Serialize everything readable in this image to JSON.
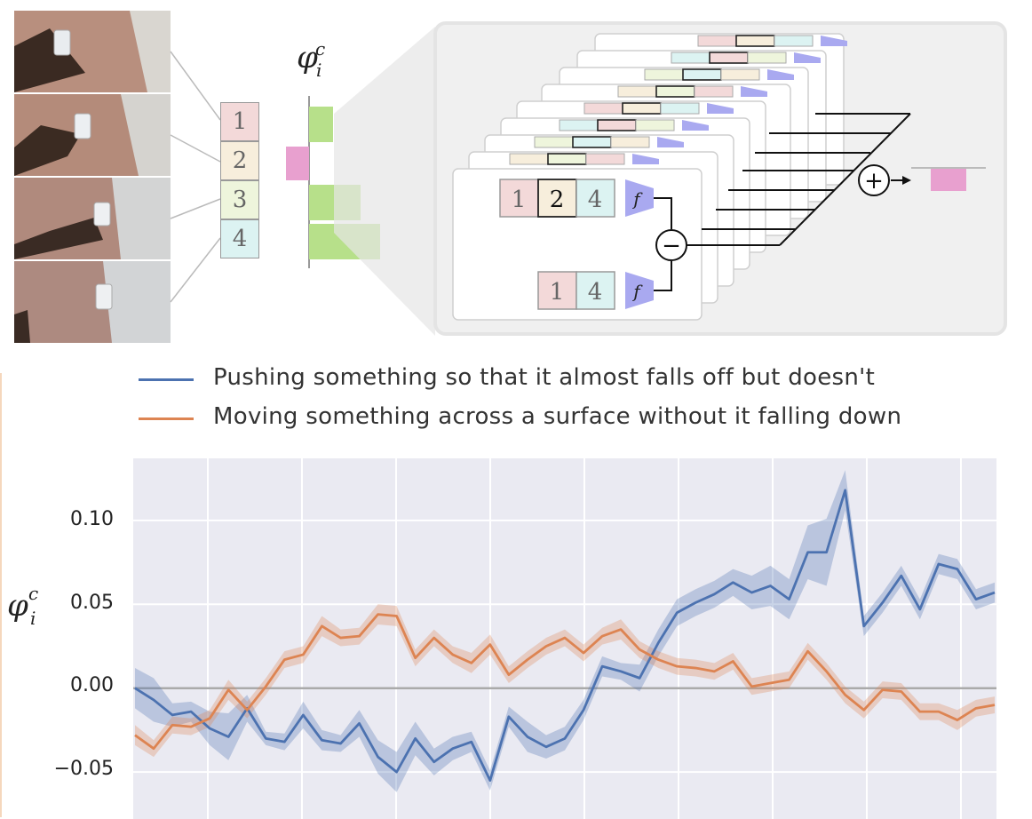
{
  "frames": [
    "frame-1",
    "frame-2",
    "frame-3",
    "frame-4"
  ],
  "sequence_boxes": [
    "1",
    "2",
    "3",
    "4"
  ],
  "sequence_colors": [
    "#f3d9d9",
    "#f7eedc",
    "#eef5dc",
    "#dcf3f2"
  ],
  "phi_label": "φ",
  "phi_sup": "c",
  "phi_sub": "i",
  "diagram": {
    "top_row": [
      "1",
      "2",
      "4"
    ],
    "bottom_row": [
      "1",
      "4"
    ],
    "f_label": "f",
    "minus": "−",
    "plus": "+"
  },
  "colors": {
    "blue": "#4c72b0",
    "orange": "#dd8452",
    "green_bar": "#b7e08a",
    "pink_bar": "#e8a0cf",
    "purple_f": "#a9a9f0",
    "plot_bg": "#eaeaf2"
  },
  "legend": [
    {
      "label": "Pushing something so that it almost falls off but doesn't",
      "color": "#4c72b0"
    },
    {
      "label": "Moving something across a surface without it falling down",
      "color": "#dd8452"
    }
  ],
  "chart_data": {
    "type": "line",
    "ylabel": "φ_i^c",
    "yticks": [
      "0.10",
      "0.05",
      "0.00",
      "−0.05"
    ],
    "ytick_values": [
      0.1,
      0.05,
      0.0,
      -0.05
    ],
    "ylim": [
      -0.078,
      0.137
    ],
    "x_count": 47,
    "grid": true,
    "series": [
      {
        "name": "Pushing something so that it almost falls off but doesn't",
        "color": "#4c72b0",
        "values": [
          0.0,
          -0.007,
          -0.016,
          -0.014,
          -0.024,
          -0.029,
          -0.012,
          -0.03,
          -0.032,
          -0.016,
          -0.031,
          -0.033,
          -0.021,
          -0.041,
          -0.05,
          -0.03,
          -0.044,
          -0.036,
          -0.032,
          -0.055,
          -0.017,
          -0.029,
          -0.035,
          -0.03,
          -0.013,
          0.013,
          0.01,
          0.006,
          0.027,
          0.045,
          0.051,
          0.056,
          0.063,
          0.057,
          0.061,
          0.053,
          0.081,
          0.081,
          0.118,
          0.037,
          0.051,
          0.067,
          0.047,
          0.074,
          0.071,
          0.053,
          0.057
        ],
        "band": [
          0.012,
          0.013,
          0.007,
          0.006,
          0.01,
          0.014,
          0.008,
          0.004,
          0.005,
          0.008,
          0.006,
          0.005,
          0.008,
          0.01,
          0.012,
          0.01,
          0.008,
          0.007,
          0.006,
          0.006,
          0.006,
          0.009,
          0.007,
          0.007,
          0.006,
          0.006,
          0.005,
          0.008,
          0.008,
          0.008,
          0.008,
          0.008,
          0.008,
          0.01,
          0.012,
          0.012,
          0.016,
          0.02,
          0.012,
          0.006,
          0.006,
          0.006,
          0.006,
          0.006,
          0.006,
          0.006,
          0.006
        ]
      },
      {
        "name": "Moving something across a surface without it falling down",
        "color": "#dd8452",
        "values": [
          -0.028,
          -0.036,
          -0.022,
          -0.023,
          -0.018,
          -0.001,
          -0.013,
          0.001,
          0.017,
          0.02,
          0.037,
          0.03,
          0.031,
          0.044,
          0.043,
          0.018,
          0.03,
          0.02,
          0.015,
          0.026,
          0.008,
          0.017,
          0.025,
          0.03,
          0.021,
          0.031,
          0.035,
          0.023,
          0.017,
          0.013,
          0.012,
          0.01,
          0.016,
          0.001,
          0.003,
          0.005,
          0.022,
          0.01,
          -0.004,
          -0.013,
          -0.001,
          -0.002,
          -0.014,
          -0.014,
          -0.019,
          -0.012,
          -0.01
        ],
        "band": [
          0.006,
          0.005,
          0.005,
          0.005,
          0.005,
          0.006,
          0.005,
          0.005,
          0.005,
          0.005,
          0.006,
          0.005,
          0.005,
          0.006,
          0.006,
          0.005,
          0.005,
          0.005,
          0.006,
          0.006,
          0.005,
          0.005,
          0.005,
          0.005,
          0.005,
          0.005,
          0.006,
          0.005,
          0.005,
          0.005,
          0.005,
          0.005,
          0.005,
          0.005,
          0.005,
          0.005,
          0.005,
          0.005,
          0.005,
          0.005,
          0.005,
          0.005,
          0.005,
          0.005,
          0.006,
          0.005,
          0.005
        ]
      }
    ]
  }
}
